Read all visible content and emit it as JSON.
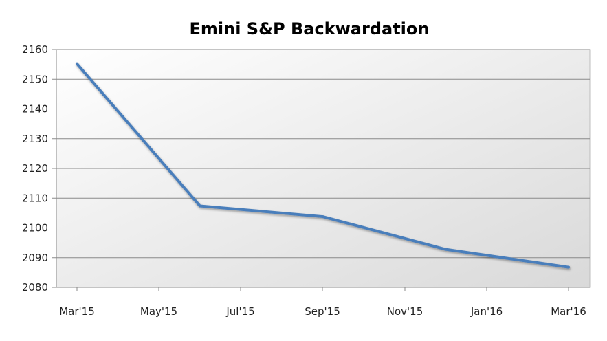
{
  "chart_data": {
    "type": "line",
    "title": "Emini S&P Backwardation",
    "xlabel": "",
    "ylabel": "",
    "x_tick_labels": [
      "Mar'15",
      "May'15",
      "Jul'15",
      "Sep'15",
      "Nov'15",
      "Jan'16",
      "Mar'16"
    ],
    "x": [
      "Mar'15",
      "Jun'15",
      "Sep'15",
      "Dec'15",
      "Mar'16"
    ],
    "series": [
      {
        "values": [
          2155.2,
          2107.4,
          2103.8,
          2092.8,
          2086.8
        ]
      }
    ],
    "ylim": [
      2080,
      2160
    ],
    "y_ticks": [
      2080,
      2090,
      2100,
      2110,
      2120,
      2130,
      2140,
      2150,
      2160
    ],
    "grid": true,
    "legend": "none",
    "colors": {
      "line": "#4a7ebb",
      "plot_background_top": "#ffffff",
      "plot_background_bottom": "#d9d9d9",
      "grid": "#8a8a8a"
    }
  }
}
